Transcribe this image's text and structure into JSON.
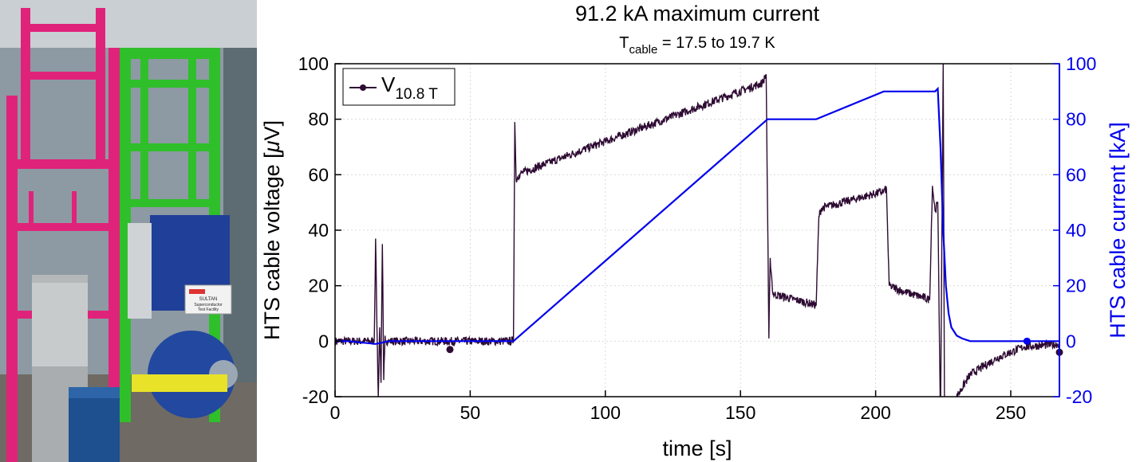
{
  "photo": {
    "sign_line1": "SULTAN",
    "sign_line2": "Superconductor",
    "sign_line3": "Test Facility"
  },
  "chart_data": {
    "type": "line",
    "title": "91.2 kA maximum current",
    "subtitle_prefix": "T",
    "subtitle_sub": "cable",
    "subtitle_suffix": " = 17.5 to 19.7 K",
    "xlabel": "time [s]",
    "ylabel_left_text": "HTS cable voltage [",
    "ylabel_left_mu": "μ",
    "ylabel_left_unit": "V]",
    "ylabel_right": "HTS cable current [kA]",
    "xlim": [
      0,
      268
    ],
    "ylim_left": [
      -20,
      100
    ],
    "ylim_right": [
      -20,
      100
    ],
    "xticks": [
      0,
      50,
      100,
      150,
      200,
      250
    ],
    "xtick_labels": [
      "0",
      "50",
      "100",
      "150",
      "200",
      "250"
    ],
    "yticks_left": [
      -20,
      0,
      20,
      40,
      60,
      80,
      100
    ],
    "yticks_left_labels": [
      "-20",
      "0",
      "20",
      "40",
      "60",
      "80",
      "100"
    ],
    "yticks_right": [
      -20,
      0,
      20,
      40,
      60,
      80,
      100
    ],
    "yticks_right_labels": [
      "-20",
      "0",
      "20",
      "40",
      "60",
      "80",
      "100"
    ],
    "grid": true,
    "legend": {
      "placement": "top-left",
      "label_main": "V",
      "label_sub": "10.8 T"
    },
    "series": [
      {
        "name": "V 10.8 T",
        "axis": "left",
        "color": "#2e0b33",
        "noise": 1.5,
        "x": [
          0,
          14.5,
          15.0,
          15.5,
          16,
          16.5,
          17.0,
          17.5,
          18.0,
          18.5,
          19,
          20,
          66,
          66.5,
          67,
          68,
          70,
          100,
          158,
          159.5,
          160.5,
          161,
          162,
          170,
          178,
          179,
          180,
          203,
          204,
          205,
          210,
          220,
          221,
          222,
          223,
          224,
          225,
          225.5,
          226,
          230,
          235,
          245,
          255,
          268
        ],
        "y": [
          0,
          0,
          37,
          5,
          -20,
          5,
          -15,
          35,
          -14,
          2,
          0,
          0,
          0,
          79,
          58,
          60,
          61,
          72,
          93,
          96,
          1,
          30,
          17,
          15,
          13,
          45,
          48,
          54,
          55,
          20,
          18,
          15,
          56,
          47,
          50,
          -30,
          100,
          -30,
          -30,
          -20,
          -12,
          -6,
          -2,
          -1
        ],
        "markers": [
          [
            42.5,
            -3
          ],
          [
            268,
            -4
          ]
        ]
      },
      {
        "name": "HTS cable current",
        "axis": "right",
        "color": "#0000ee",
        "noise": 0,
        "x": [
          0,
          5,
          15,
          20,
          66,
          160,
          178,
          203,
          222,
          223,
          224,
          225,
          226,
          227,
          228,
          230,
          232,
          235,
          240,
          268
        ],
        "y": [
          0,
          0,
          -1,
          0,
          0,
          80,
          80,
          90,
          90,
          91,
          70,
          40,
          20,
          10,
          5,
          2,
          1,
          0,
          0,
          0
        ],
        "markers": [
          [
            256,
            0
          ]
        ]
      }
    ]
  }
}
